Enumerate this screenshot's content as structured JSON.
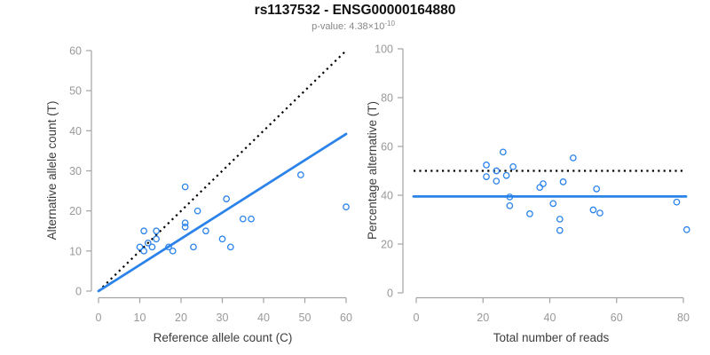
{
  "header": {
    "title": "rs1137532 - ENSG00000164880",
    "pvalue_main": "p-value: 4.38×10",
    "pvalue_exponent": "-10"
  },
  "colors": {
    "accent": "#2B83EA",
    "identity_line": "#000000",
    "axis": "#A3A3A3",
    "tick_label": "#999999",
    "axis_title": "#3D3D3D",
    "title": "#111111",
    "subtitle": "#878787"
  },
  "chart_data": [
    {
      "type": "scatter",
      "name": "allele-counts",
      "xlabel": "Reference allele count (C)",
      "ylabel": "Alternative allele count (T)",
      "xlim": [
        0,
        60
      ],
      "ylim": [
        0,
        60
      ],
      "xticks": [
        0,
        10,
        20,
        30,
        40,
        50,
        60
      ],
      "yticks": [
        0,
        10,
        20,
        30,
        40,
        50,
        60
      ],
      "marker": "open-circle",
      "points": [
        [
          10,
          11
        ],
        [
          11,
          10
        ],
        [
          11,
          15
        ],
        [
          12,
          12
        ],
        [
          13,
          11
        ],
        [
          14,
          13
        ],
        [
          14,
          15
        ],
        [
          17,
          11
        ],
        [
          18,
          10
        ],
        [
          21,
          16
        ],
        [
          21,
          17
        ],
        [
          21,
          26
        ],
        [
          23,
          11
        ],
        [
          24,
          20
        ],
        [
          26,
          15
        ],
        [
          30,
          13
        ],
        [
          31,
          23
        ],
        [
          32,
          11
        ],
        [
          35,
          18
        ],
        [
          37,
          18
        ],
        [
          49,
          29
        ],
        [
          60,
          21
        ]
      ],
      "lines": [
        {
          "name": "identity-line",
          "style": "dotted",
          "color": "identity_line",
          "x": [
            0,
            60
          ],
          "y": [
            0,
            60
          ]
        },
        {
          "name": "fit-line",
          "style": "solid",
          "color": "accent",
          "x": [
            0,
            60
          ],
          "y": [
            0,
            39.2
          ]
        }
      ],
      "grid": false,
      "legend": "none"
    },
    {
      "type": "scatter",
      "name": "percentage-vs-coverage",
      "xlabel": "Total number of reads",
      "ylabel": "Percentage alternative (T)",
      "xlim": [
        0,
        80
      ],
      "ylim": [
        0,
        100
      ],
      "xticks": [
        0,
        20,
        40,
        60,
        80
      ],
      "yticks": [
        0,
        20,
        40,
        60,
        80,
        100
      ],
      "marker": "open-circle",
      "points": [
        [
          21,
          52.4
        ],
        [
          21,
          47.6
        ],
        [
          24,
          50.0
        ],
        [
          24,
          45.8
        ],
        [
          26,
          57.7
        ],
        [
          27,
          48.1
        ],
        [
          28,
          39.3
        ],
        [
          28,
          35.7
        ],
        [
          29,
          51.7
        ],
        [
          34,
          32.4
        ],
        [
          37,
          43.2
        ],
        [
          38,
          44.7
        ],
        [
          41,
          36.6
        ],
        [
          43,
          30.2
        ],
        [
          43,
          25.6
        ],
        [
          44,
          45.5
        ],
        [
          47,
          55.3
        ],
        [
          53,
          34.0
        ],
        [
          54,
          42.6
        ],
        [
          55,
          32.7
        ],
        [
          78,
          37.2
        ],
        [
          81,
          25.9
        ]
      ],
      "lines": [
        {
          "name": "expected-50-line",
          "style": "dotted",
          "color": "identity_line",
          "hline": 50
        },
        {
          "name": "observed-mean-line",
          "style": "solid",
          "color": "accent",
          "hline": 39.5
        }
      ],
      "grid": false,
      "legend": "none"
    }
  ]
}
